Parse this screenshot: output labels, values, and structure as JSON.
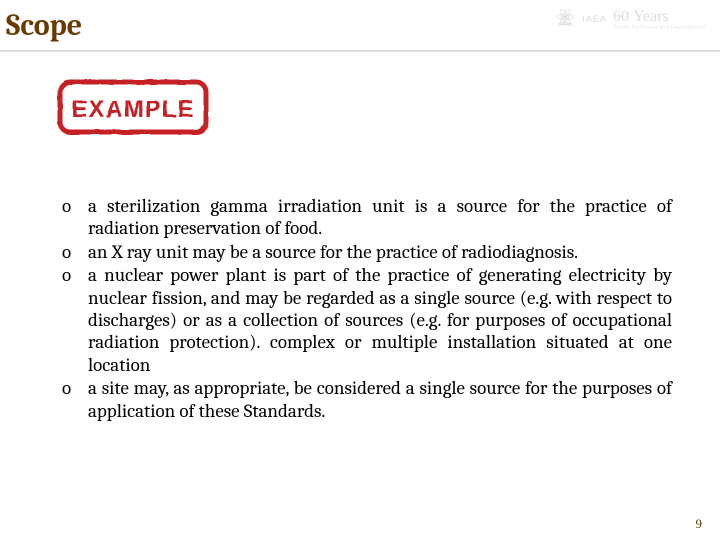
{
  "slide": {
    "title": "Scope",
    "title_color": "#6a3a00",
    "title_fontsize": 30,
    "underline_color": "#dcdcdc",
    "background": "#ffffff"
  },
  "header": {
    "org_abbrev": "IAEA",
    "sixty_text": "60",
    "years_text": "Years",
    "tagline": "Atoms for Peace and Development",
    "faded_color": "#9d9d9d"
  },
  "stamp": {
    "label": "EXAMPLE",
    "border_color": "#c62025",
    "text_color": "#c62025",
    "background_color": "#ffffff"
  },
  "bullets": {
    "marker": "o",
    "fontsize": 19,
    "text_color": "#000000",
    "items": [
      {
        "text": "a sterilization gamma irradiation unit is a source for the practice of radiation preservation of food.",
        "justify": true
      },
      {
        "text": "an X ray unit may be a source for the practice of radiodiagnosis.",
        "justify": false
      },
      {
        "text": "a nuclear power plant is part of the practice of generating electricity by nuclear fission, and may be regarded as a single source (e.g. with respect to discharges) or as a collection of sources (e.g. for purposes of occupational radiation protection). complex or multiple installation situated at one location",
        "justify": true
      },
      {
        "text": "a site may, as appropriate, be considered a single source for the purposes of application of these Standards.",
        "justify": true
      }
    ]
  },
  "footer": {
    "page_number": "9",
    "page_number_color": "#5b3b00"
  }
}
